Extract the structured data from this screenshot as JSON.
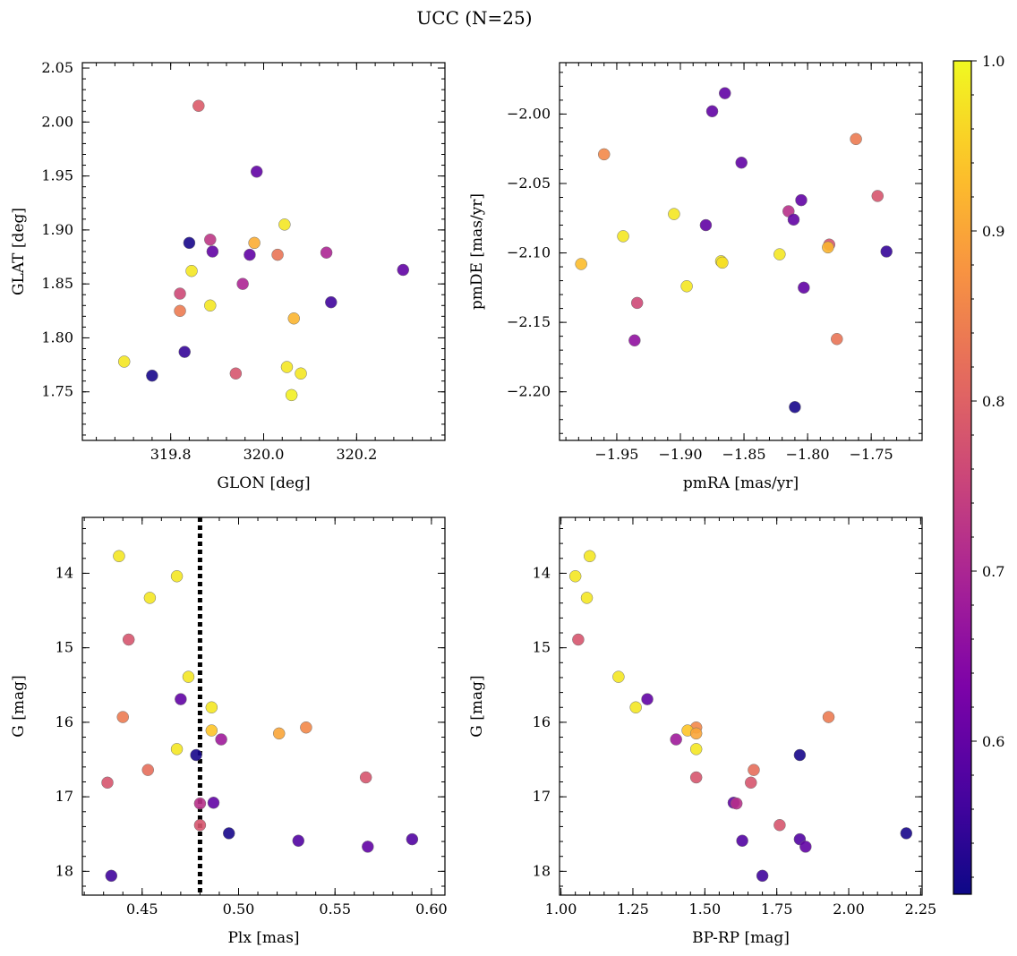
{
  "figure_title": "UCC (N=25)",
  "colorbar": {
    "cmap": "plasma",
    "range": [
      0.51,
      1.0
    ],
    "ticks": [
      0.6,
      0.7,
      0.8,
      0.9,
      1.0
    ],
    "tick_labels": [
      "0.6",
      "0.7",
      "0.8",
      "0.9",
      "1.0"
    ]
  },
  "chart_data": [
    {
      "type": "scatter",
      "id": "glon-glat",
      "xlabel": "GLON [deg]",
      "ylabel": "GLAT [deg]",
      "xlim": [
        319.61,
        320.39
      ],
      "ylim": [
        1.705,
        2.055
      ],
      "y_inverted": false,
      "xticks": [
        319.8,
        320.0,
        320.2
      ],
      "xtick_labels": [
        "319.8",
        "320.0",
        "320.2"
      ],
      "yticks": [
        1.75,
        1.8,
        1.85,
        1.9,
        1.95,
        2.0,
        2.05
      ],
      "ytick_labels": [
        "1.75",
        "1.80",
        "1.85",
        "1.90",
        "1.95",
        "2.00",
        "2.05"
      ],
      "points": [
        {
          "x": 319.86,
          "y": 2.015,
          "c": 0.79
        },
        {
          "x": 319.985,
          "y": 1.954,
          "c": 0.6
        },
        {
          "x": 320.045,
          "y": 1.905,
          "c": 0.98
        },
        {
          "x": 319.84,
          "y": 1.888,
          "c": 0.52
        },
        {
          "x": 319.885,
          "y": 1.891,
          "c": 0.73
        },
        {
          "x": 319.98,
          "y": 1.888,
          "c": 0.91
        },
        {
          "x": 319.89,
          "y": 1.88,
          "c": 0.6
        },
        {
          "x": 319.97,
          "y": 1.877,
          "c": 0.6
        },
        {
          "x": 320.03,
          "y": 1.877,
          "c": 0.83
        },
        {
          "x": 320.135,
          "y": 1.879,
          "c": 0.7
        },
        {
          "x": 320.3,
          "y": 1.863,
          "c": 0.6
        },
        {
          "x": 319.845,
          "y": 1.862,
          "c": 0.98
        },
        {
          "x": 319.955,
          "y": 1.85,
          "c": 0.7
        },
        {
          "x": 319.82,
          "y": 1.841,
          "c": 0.76
        },
        {
          "x": 320.145,
          "y": 1.833,
          "c": 0.56
        },
        {
          "x": 319.885,
          "y": 1.83,
          "c": 0.98
        },
        {
          "x": 319.82,
          "y": 1.825,
          "c": 0.84
        },
        {
          "x": 320.065,
          "y": 1.818,
          "c": 0.92
        },
        {
          "x": 319.83,
          "y": 1.787,
          "c": 0.55
        },
        {
          "x": 319.7,
          "y": 1.778,
          "c": 0.98
        },
        {
          "x": 320.05,
          "y": 1.773,
          "c": 0.98
        },
        {
          "x": 320.08,
          "y": 1.767,
          "c": 0.98
        },
        {
          "x": 319.94,
          "y": 1.767,
          "c": 0.78
        },
        {
          "x": 319.76,
          "y": 1.765,
          "c": 0.52
        },
        {
          "x": 320.06,
          "y": 1.747,
          "c": 0.99
        }
      ]
    },
    {
      "type": "scatter",
      "id": "pmra-pmde",
      "xlabel": "pmRA [mas/yr]",
      "ylabel": "pmDE [mas/yr]",
      "xlim": [
        -1.995,
        -1.71
      ],
      "ylim": [
        -2.235,
        -1.963
      ],
      "y_inverted": false,
      "xticks": [
        -1.95,
        -1.9,
        -1.85,
        -1.8,
        -1.75
      ],
      "xtick_labels": [
        "−1.95",
        "−1.90",
        "−1.85",
        "−1.80",
        "−1.75"
      ],
      "yticks": [
        -2.2,
        -2.15,
        -2.1,
        -2.05,
        -2.0
      ],
      "ytick_labels": [
        "−2.20",
        "−2.15",
        "−2.10",
        "−2.05",
        "−2.00"
      ],
      "points": [
        {
          "x": -1.865,
          "y": -1.985,
          "c": 0.6
        },
        {
          "x": -1.875,
          "y": -1.998,
          "c": 0.6
        },
        {
          "x": -1.762,
          "y": -2.018,
          "c": 0.84
        },
        {
          "x": -1.96,
          "y": -2.029,
          "c": 0.86
        },
        {
          "x": -1.852,
          "y": -2.035,
          "c": 0.6
        },
        {
          "x": -1.745,
          "y": -2.059,
          "c": 0.78
        },
        {
          "x": -1.805,
          "y": -2.062,
          "c": 0.6
        },
        {
          "x": -1.815,
          "y": -2.07,
          "c": 0.72
        },
        {
          "x": -1.905,
          "y": -2.072,
          "c": 0.98
        },
        {
          "x": -1.811,
          "y": -2.076,
          "c": 0.6
        },
        {
          "x": -1.88,
          "y": -2.08,
          "c": 0.6
        },
        {
          "x": -1.945,
          "y": -2.088,
          "c": 0.98
        },
        {
          "x": -1.783,
          "y": -2.094,
          "c": 0.78
        },
        {
          "x": -1.784,
          "y": -2.096,
          "c": 0.92
        },
        {
          "x": -1.738,
          "y": -2.099,
          "c": 0.55
        },
        {
          "x": -1.822,
          "y": -2.101,
          "c": 0.98
        },
        {
          "x": -1.868,
          "y": -2.106,
          "c": 0.98
        },
        {
          "x": -1.867,
          "y": -2.107,
          "c": 0.97
        },
        {
          "x": -1.978,
          "y": -2.108,
          "c": 0.93
        },
        {
          "x": -1.803,
          "y": -2.125,
          "c": 0.6
        },
        {
          "x": -1.895,
          "y": -2.124,
          "c": 0.98
        },
        {
          "x": -1.934,
          "y": -2.136,
          "c": 0.76
        },
        {
          "x": -1.936,
          "y": -2.163,
          "c": 0.66
        },
        {
          "x": -1.777,
          "y": -2.162,
          "c": 0.83
        },
        {
          "x": -1.81,
          "y": -2.211,
          "c": 0.52
        }
      ]
    },
    {
      "type": "scatter",
      "id": "plx-g",
      "xlabel": "Plx [mas]",
      "ylabel": "G [mag]",
      "xlim": [
        0.419,
        0.607
      ],
      "ylim": [
        13.25,
        18.32
      ],
      "y_inverted": true,
      "xticks": [
        0.45,
        0.5,
        0.55,
        0.6
      ],
      "xtick_labels": [
        "0.45",
        "0.50",
        "0.55",
        "0.60"
      ],
      "yticks": [
        14,
        15,
        16,
        17,
        18
      ],
      "ytick_labels": [
        "14",
        "15",
        "16",
        "17",
        "18"
      ],
      "vline": {
        "x": 0.48,
        "style": "dotted",
        "color": "#000000"
      },
      "points": [
        {
          "x": 0.438,
          "y": 13.77,
          "c": 0.98
        },
        {
          "x": 0.468,
          "y": 14.04,
          "c": 0.98
        },
        {
          "x": 0.454,
          "y": 14.33,
          "c": 0.98
        },
        {
          "x": 0.443,
          "y": 14.89,
          "c": 0.78
        },
        {
          "x": 0.474,
          "y": 15.39,
          "c": 0.98
        },
        {
          "x": 0.47,
          "y": 15.69,
          "c": 0.6
        },
        {
          "x": 0.486,
          "y": 15.8,
          "c": 0.98
        },
        {
          "x": 0.44,
          "y": 15.93,
          "c": 0.84
        },
        {
          "x": 0.486,
          "y": 16.11,
          "c": 0.94
        },
        {
          "x": 0.521,
          "y": 16.15,
          "c": 0.9
        },
        {
          "x": 0.535,
          "y": 16.07,
          "c": 0.86
        },
        {
          "x": 0.491,
          "y": 16.23,
          "c": 0.68
        },
        {
          "x": 0.468,
          "y": 16.36,
          "c": 0.98
        },
        {
          "x": 0.478,
          "y": 16.44,
          "c": 0.52
        },
        {
          "x": 0.453,
          "y": 16.64,
          "c": 0.82
        },
        {
          "x": 0.566,
          "y": 16.74,
          "c": 0.78
        },
        {
          "x": 0.432,
          "y": 16.81,
          "c": 0.78
        },
        {
          "x": 0.487,
          "y": 17.08,
          "c": 0.6
        },
        {
          "x": 0.48,
          "y": 17.09,
          "c": 0.72
        },
        {
          "x": 0.48,
          "y": 17.38,
          "c": 0.78
        },
        {
          "x": 0.495,
          "y": 17.49,
          "c": 0.52
        },
        {
          "x": 0.531,
          "y": 17.59,
          "c": 0.58
        },
        {
          "x": 0.59,
          "y": 17.57,
          "c": 0.58
        },
        {
          "x": 0.567,
          "y": 17.67,
          "c": 0.6
        },
        {
          "x": 0.434,
          "y": 18.06,
          "c": 0.56
        }
      ]
    },
    {
      "type": "scatter",
      "id": "bprp-g",
      "xlabel": "BP-RP [mag]",
      "ylabel": "G [mag]",
      "xlim": [
        0.995,
        2.255
      ],
      "ylim": [
        13.25,
        18.32
      ],
      "y_inverted": true,
      "xticks": [
        1.0,
        1.25,
        1.5,
        1.75,
        2.0,
        2.25
      ],
      "xtick_labels": [
        "1.00",
        "1.25",
        "1.50",
        "1.75",
        "2.00",
        "2.25"
      ],
      "yticks": [
        14,
        15,
        16,
        17,
        18
      ],
      "ytick_labels": [
        "14",
        "15",
        "16",
        "17",
        "18"
      ],
      "points": [
        {
          "x": 1.1,
          "y": 13.77,
          "c": 0.98
        },
        {
          "x": 1.05,
          "y": 14.04,
          "c": 0.98
        },
        {
          "x": 1.09,
          "y": 14.33,
          "c": 0.98
        },
        {
          "x": 1.06,
          "y": 14.89,
          "c": 0.78
        },
        {
          "x": 1.2,
          "y": 15.39,
          "c": 0.98
        },
        {
          "x": 1.3,
          "y": 15.69,
          "c": 0.6
        },
        {
          "x": 1.26,
          "y": 15.8,
          "c": 0.98
        },
        {
          "x": 1.93,
          "y": 15.93,
          "c": 0.84
        },
        {
          "x": 1.47,
          "y": 16.07,
          "c": 0.86
        },
        {
          "x": 1.44,
          "y": 16.11,
          "c": 0.94
        },
        {
          "x": 1.47,
          "y": 16.15,
          "c": 0.9
        },
        {
          "x": 1.4,
          "y": 16.23,
          "c": 0.68
        },
        {
          "x": 1.47,
          "y": 16.36,
          "c": 0.98
        },
        {
          "x": 1.83,
          "y": 16.44,
          "c": 0.52
        },
        {
          "x": 1.67,
          "y": 16.64,
          "c": 0.82
        },
        {
          "x": 1.47,
          "y": 16.74,
          "c": 0.78
        },
        {
          "x": 1.66,
          "y": 16.81,
          "c": 0.78
        },
        {
          "x": 1.6,
          "y": 17.08,
          "c": 0.6
        },
        {
          "x": 1.61,
          "y": 17.09,
          "c": 0.72
        },
        {
          "x": 1.76,
          "y": 17.38,
          "c": 0.78
        },
        {
          "x": 2.2,
          "y": 17.49,
          "c": 0.52
        },
        {
          "x": 1.63,
          "y": 17.59,
          "c": 0.58
        },
        {
          "x": 1.83,
          "y": 17.57,
          "c": 0.58
        },
        {
          "x": 1.85,
          "y": 17.67,
          "c": 0.6
        },
        {
          "x": 1.7,
          "y": 18.06,
          "c": 0.56
        }
      ]
    }
  ]
}
